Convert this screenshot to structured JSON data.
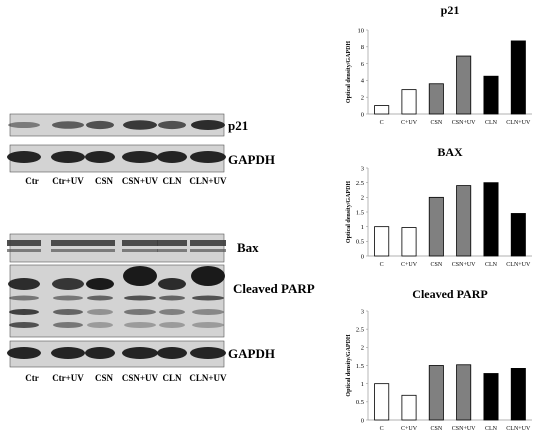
{
  "blots": [
    {
      "labels": [
        {
          "name": "p21-label",
          "text": "p21"
        },
        {
          "name": "gapdh-label-top",
          "text": "GAPDH"
        }
      ],
      "lanes": [
        "Ctr",
        "Ctr+UV",
        "CSN",
        "CSN+UV",
        "CLN",
        "CLN+UV"
      ],
      "band_intensity": {
        "p21": [
          0.35,
          0.6,
          0.7,
          0.9,
          0.7,
          1.0
        ],
        "gapdh": [
          1,
          1,
          1,
          1,
          1,
          1
        ]
      }
    },
    {
      "labels": [
        {
          "name": "bax-label",
          "text": "Bax"
        },
        {
          "name": "cleaved-parp-label",
          "text": "Cleaved PARP"
        },
        {
          "name": "gapdh-label-bottom",
          "text": "GAPDH"
        }
      ],
      "lanes": [
        "Ctr",
        "Ctr+UV",
        "CSN",
        "CSN+UV",
        "CLN",
        "CLN+UV"
      ]
    }
  ],
  "colors": {
    "white_bar": "#ffffff",
    "gray_bar": "#808080",
    "black_bar": "#000000",
    "blot_bg": "#d3d3d3",
    "band": "#1a1a1a"
  },
  "chart_data": [
    {
      "type": "bar",
      "title": "p21",
      "ylabel": "Optical density/GAPDH",
      "categories": [
        "C",
        "C+UV",
        "CSN",
        "CSN+UV",
        "CLN",
        "CLN+UV"
      ],
      "values": [
        1.0,
        2.9,
        3.6,
        6.9,
        4.5,
        8.7
      ],
      "ylim": [
        0,
        10
      ],
      "yticks": [
        "0",
        "2",
        "4",
        "6",
        "8",
        "10"
      ],
      "bar_colors": [
        "white",
        "white",
        "gray",
        "gray",
        "black",
        "black"
      ],
      "grid": false
    },
    {
      "type": "bar",
      "title": "BAX",
      "ylabel": "Optical density/GAPDH",
      "categories": [
        "C",
        "C+UV",
        "CSN",
        "CSN+UV",
        "CLN",
        "CLN+UV"
      ],
      "values": [
        1.0,
        0.97,
        2.0,
        2.4,
        2.5,
        1.45
      ],
      "ylim": [
        0,
        3
      ],
      "yticks": [
        "0",
        "0.5",
        "1",
        "1.5",
        "2",
        "2.5",
        "3"
      ],
      "bar_colors": [
        "white",
        "white",
        "gray",
        "gray",
        "black",
        "black"
      ],
      "grid": false
    },
    {
      "type": "bar",
      "title": "Cleaved PARP",
      "ylabel": "Optical density/GAPDH",
      "categories": [
        "C",
        "C+UV",
        "CSN",
        "CSN+UV",
        "CLN",
        "CLN+UV"
      ],
      "values": [
        1.0,
        0.68,
        1.5,
        1.52,
        1.28,
        1.42
      ],
      "ylim": [
        0,
        3
      ],
      "yticks": [
        "0",
        "0.5",
        "1",
        "1.5",
        "2",
        "2.5",
        "3"
      ],
      "bar_colors": [
        "white",
        "white",
        "gray",
        "gray",
        "black",
        "black"
      ],
      "grid": false
    }
  ]
}
